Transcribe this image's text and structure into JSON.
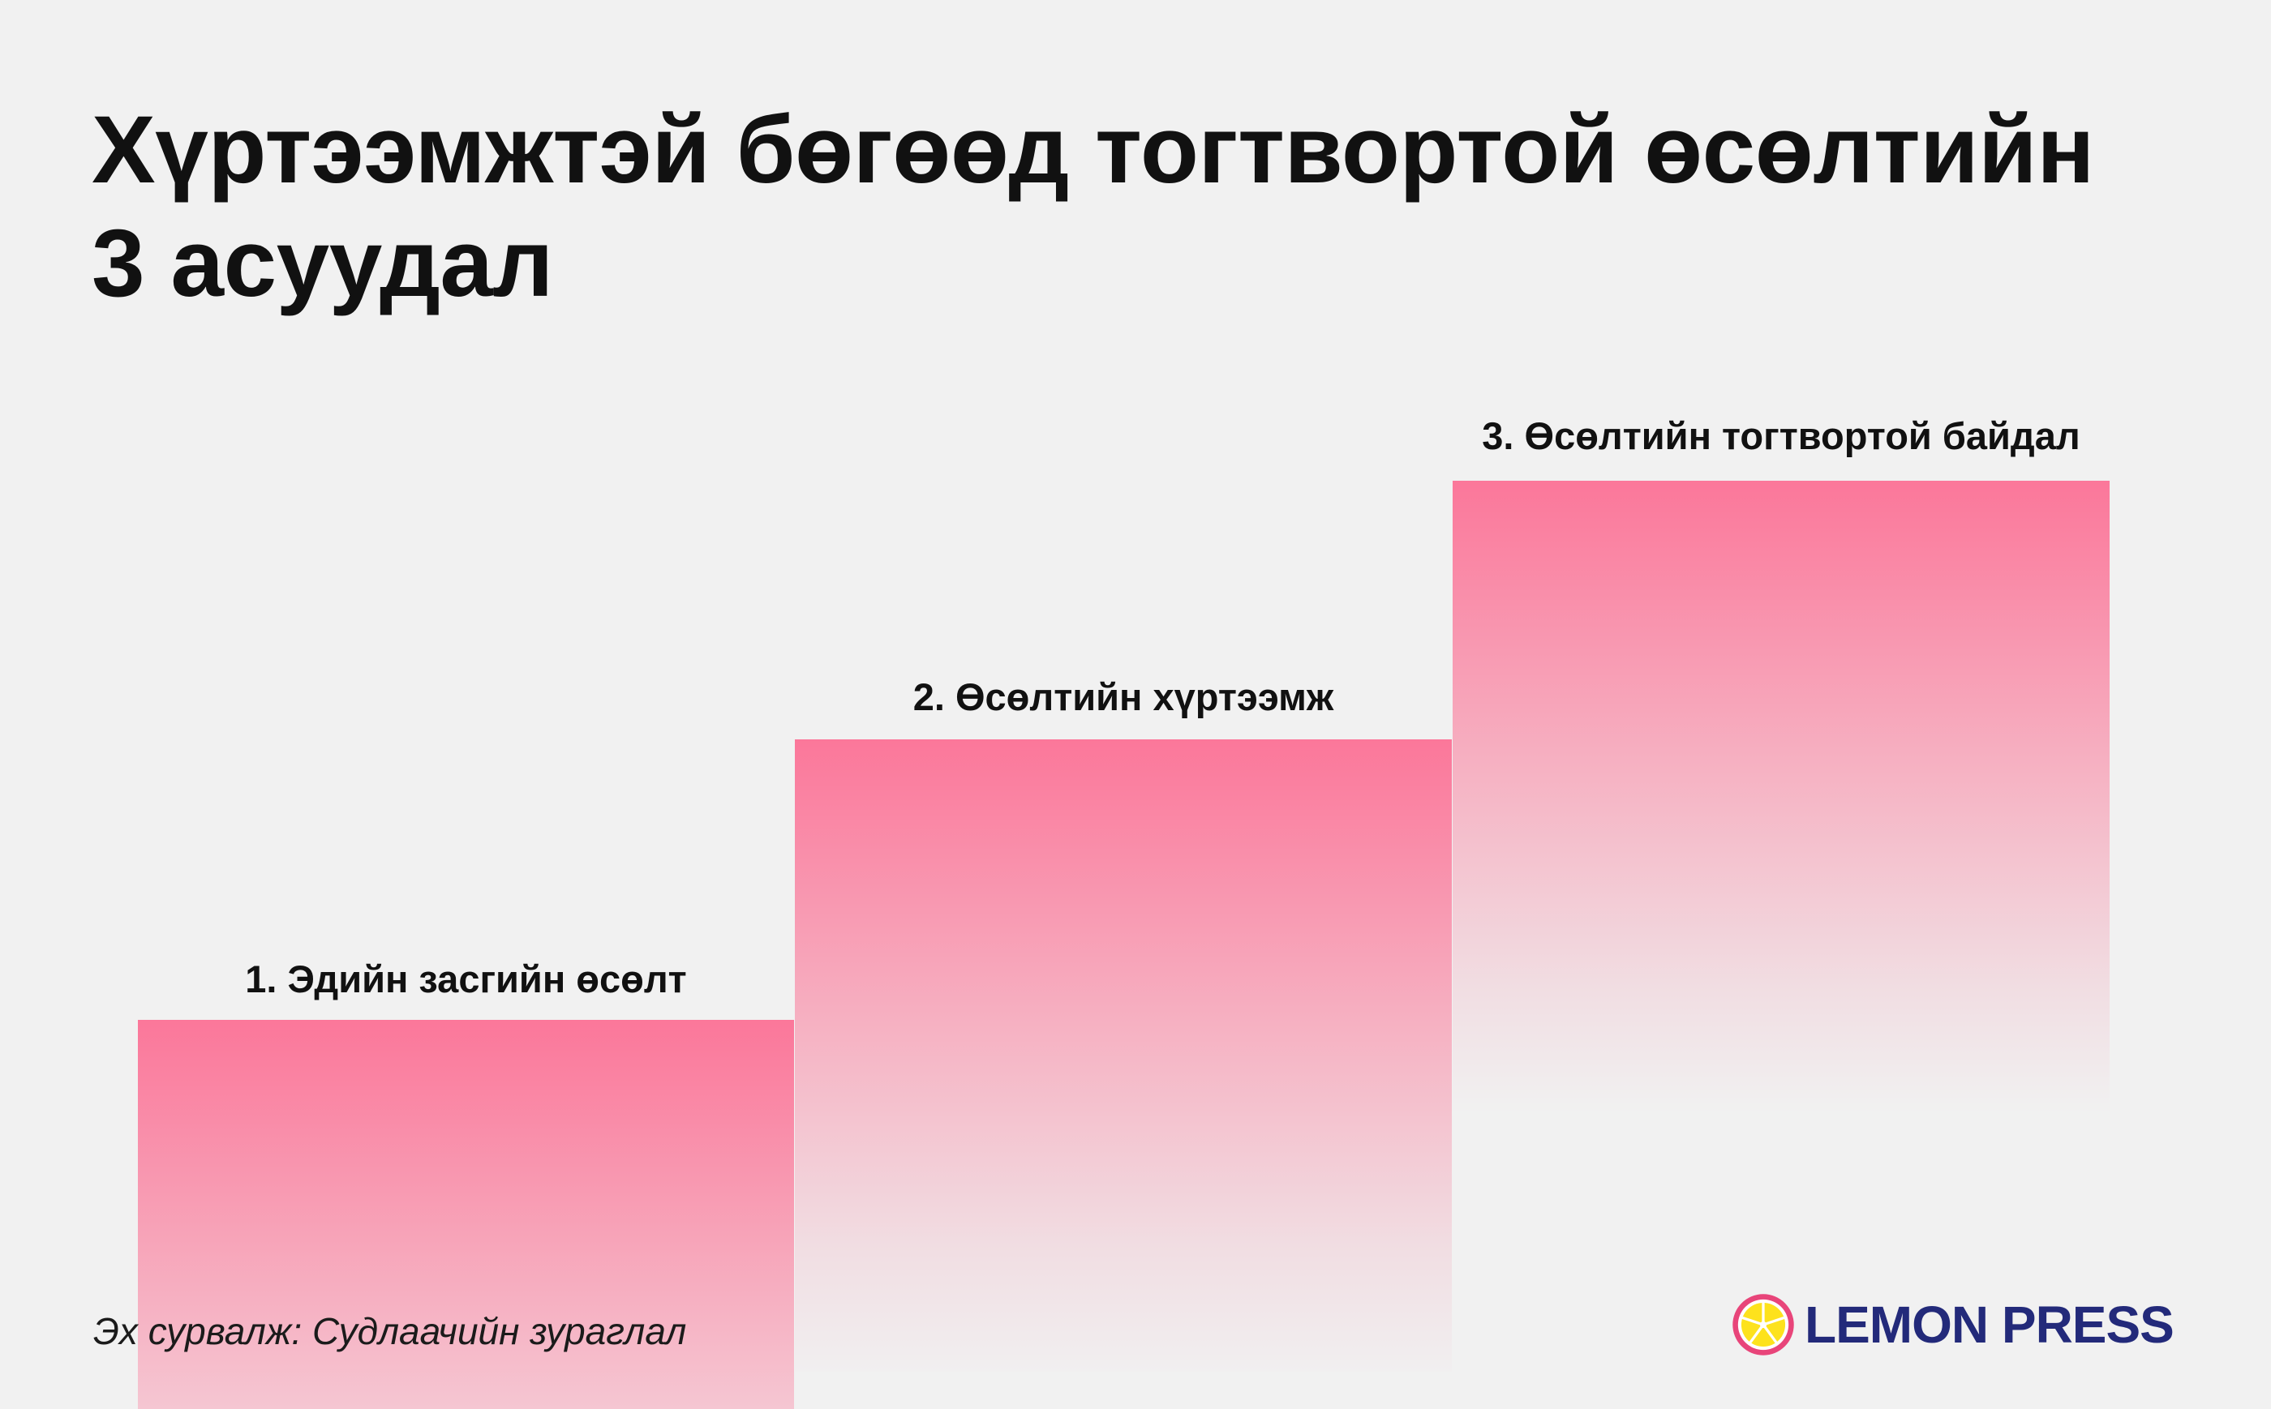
{
  "title_lines": [
    "Хүртээмжтэй бөгөөд тогтвортой өсөлтийн",
    "3 асуудал"
  ],
  "steps": [
    {
      "label": "1. Эдийн засгийн өсөлт",
      "level": 1
    },
    {
      "label": "2. Өсөлтийн хүртээмж",
      "level": 2
    },
    {
      "label": "3. Өсөлтийн тогтвортой байдал",
      "level": 3
    }
  ],
  "source": "Эх сурвалж: Судлаачийн зураглал",
  "brand": {
    "name": "LEMON PRESS",
    "icon": "lemon-slice-icon"
  },
  "colors": {
    "background": "#f1f1f1",
    "step_top": "#fb779a",
    "brand_navy": "#232a7a",
    "brand_pink": "#e8457a",
    "brand_yellow": "#fde21d"
  }
}
